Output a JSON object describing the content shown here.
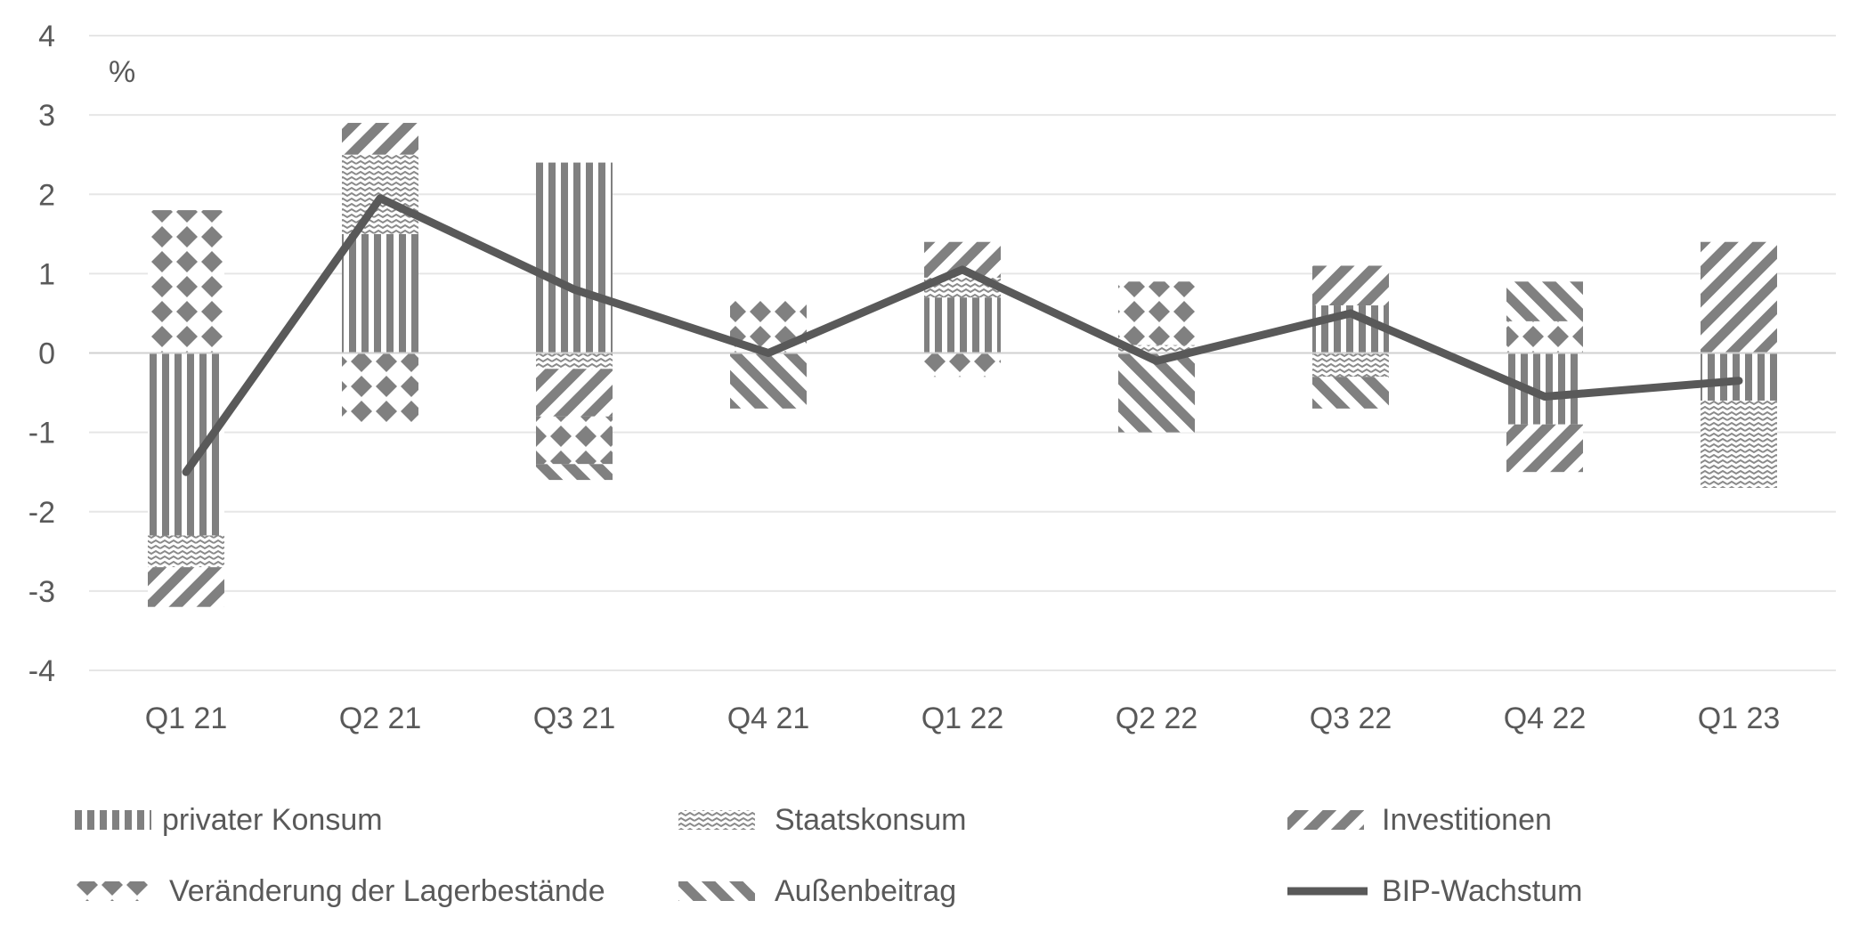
{
  "chart_data": {
    "type": "bar",
    "subtype": "stacked-bar-with-line",
    "title": "",
    "xlabel": "",
    "ylabel": "%",
    "ylim": [
      -4,
      4
    ],
    "yticks": [
      4,
      3,
      2,
      1,
      0,
      -1,
      -2,
      -3,
      -4
    ],
    "grid": true,
    "legend_position": "bottom",
    "categories": [
      "Q1 21",
      "Q2 21",
      "Q3 21",
      "Q4 21",
      "Q1 22",
      "Q2 22",
      "Q3 22",
      "Q4 22",
      "Q1 23"
    ],
    "series": [
      {
        "name": "privater Konsum",
        "pattern": "vertical-lines",
        "values": [
          -2.3,
          1.5,
          2.4,
          0.0,
          0.7,
          0.0,
          0.6,
          -0.9,
          -0.6
        ]
      },
      {
        "name": "Staatskonsum",
        "pattern": "waves",
        "values": [
          -0.4,
          1.0,
          -0.2,
          0.0,
          0.25,
          0.1,
          -0.3,
          0.0,
          -1.1
        ]
      },
      {
        "name": "Investitionen",
        "pattern": "backward-diagonal",
        "values": [
          -0.5,
          0.4,
          -0.6,
          0.0,
          0.45,
          0.0,
          0.5,
          -0.6,
          1.4
        ]
      },
      {
        "name": "Veränderung der Lagerbestände",
        "pattern": "diamonds",
        "values": [
          1.8,
          -0.9,
          -0.6,
          0.7,
          -0.3,
          0.8,
          0.0,
          0.4,
          0.0
        ]
      },
      {
        "name": "Außenbeitrag",
        "pattern": "forward-diagonal",
        "values": [
          0.0,
          0.0,
          -0.2,
          -0.7,
          0.0,
          -1.0,
          -0.4,
          0.5,
          0.0
        ]
      }
    ],
    "line": {
      "name": "BIP-Wachstum",
      "values": [
        -1.5,
        1.95,
        0.8,
        0.0,
        1.05,
        -0.1,
        0.5,
        -0.55,
        -0.35
      ]
    }
  },
  "legend": {
    "items": [
      "privater Konsum",
      "Staatskonsum",
      "Investitionen",
      "Veränderung der Lagerbestände",
      "Außenbeitrag",
      "BIP-Wachstum"
    ]
  },
  "colors": {
    "pattern_fill": "#808080",
    "line": "#595959",
    "grid": "#e6e6e6",
    "zero_axis": "#d0d0d0",
    "text": "#595959"
  }
}
